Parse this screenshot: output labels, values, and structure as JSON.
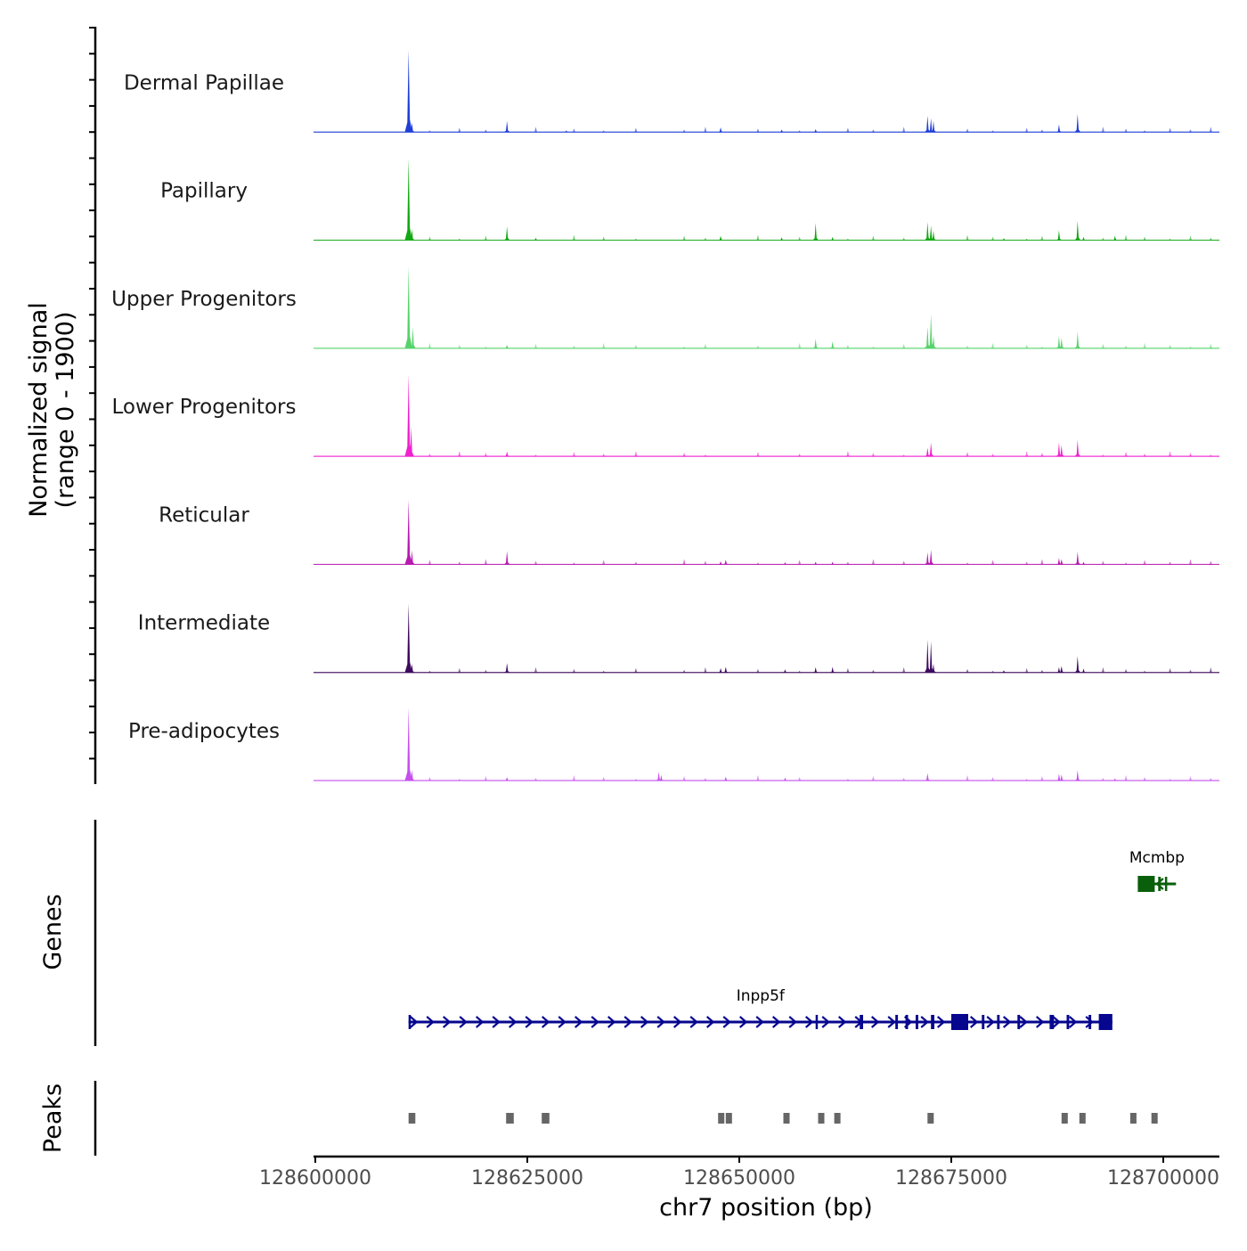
{
  "chart_data": {
    "type": "area",
    "genome_region": "chr7",
    "xlabel": "chr7 position (bp)",
    "xlim": [
      128600000,
      128707000
    ],
    "x_ticks": [
      {
        "value": 128600000,
        "label": "128600000"
      },
      {
        "value": 128625000,
        "label": "128625000"
      },
      {
        "value": 128650000,
        "label": "128650000"
      },
      {
        "value": 128675000,
        "label": "128675000"
      },
      {
        "value": 128700000,
        "label": "128700000"
      }
    ],
    "coverage_ylabel_line1": "Normalized signal",
    "coverage_ylabel_line2": "(range 0 - 1900)",
    "ylim": [
      0,
      1900
    ],
    "tracks": [
      {
        "name": "Dermal Papillae",
        "color": "#1f3ed8",
        "peaks": [
          [
            128611000,
            1900
          ],
          [
            128611400,
            220
          ],
          [
            128622600,
            260
          ],
          [
            128629600,
            40
          ],
          [
            128647800,
            110
          ],
          [
            128655000,
            60
          ],
          [
            128659000,
            70
          ],
          [
            128672200,
            380
          ],
          [
            128672600,
            320
          ],
          [
            128672900,
            260
          ],
          [
            128687700,
            180
          ],
          [
            128689900,
            420
          ]
        ]
      },
      {
        "name": "Papillary",
        "color": "#12a812",
        "peaks": [
          [
            128611000,
            1900
          ],
          [
            128611400,
            260
          ],
          [
            128622600,
            320
          ],
          [
            128626000,
            40
          ],
          [
            128647800,
            100
          ],
          [
            128655000,
            70
          ],
          [
            128659000,
            400
          ],
          [
            128661000,
            80
          ],
          [
            128672200,
            420
          ],
          [
            128672600,
            340
          ],
          [
            128672900,
            220
          ],
          [
            128681200,
            50
          ],
          [
            128687700,
            230
          ],
          [
            128689900,
            450
          ],
          [
            128690600,
            80
          ],
          [
            128694300,
            100
          ]
        ]
      },
      {
        "name": "Upper Progenitors",
        "color": "#56d36b",
        "peaks": [
          [
            128611000,
            1900
          ],
          [
            128611500,
            500
          ],
          [
            128622600,
            80
          ],
          [
            128659000,
            220
          ],
          [
            128661000,
            160
          ],
          [
            128672200,
            500
          ],
          [
            128672600,
            800
          ],
          [
            128672900,
            300
          ],
          [
            128687700,
            280
          ],
          [
            128688000,
            240
          ],
          [
            128689900,
            380
          ]
        ]
      },
      {
        "name": "Lower Progenitors",
        "color": "#f020d0",
        "peaks": [
          [
            128611000,
            1900
          ],
          [
            128611300,
            700
          ],
          [
            128622600,
            110
          ],
          [
            128672200,
            200
          ],
          [
            128672600,
            320
          ],
          [
            128687700,
            320
          ],
          [
            128688000,
            260
          ],
          [
            128689900,
            380
          ]
        ]
      },
      {
        "name": "Reticular",
        "color": "#b81ab0",
        "peaks": [
          [
            128611000,
            1500
          ],
          [
            128611400,
            330
          ],
          [
            128622600,
            310
          ],
          [
            128647800,
            70
          ],
          [
            128648400,
            110
          ],
          [
            128655400,
            50
          ],
          [
            128659000,
            60
          ],
          [
            128661000,
            60
          ],
          [
            128672200,
            280
          ],
          [
            128672600,
            340
          ],
          [
            128687700,
            150
          ],
          [
            128688000,
            120
          ],
          [
            128689900,
            290
          ],
          [
            128690600,
            60
          ]
        ]
      },
      {
        "name": "Intermediate",
        "color": "#3d0a5e",
        "peaks": [
          [
            128611000,
            1600
          ],
          [
            128611400,
            200
          ],
          [
            128622600,
            220
          ],
          [
            128647800,
            100
          ],
          [
            128648400,
            130
          ],
          [
            128655400,
            70
          ],
          [
            128659000,
            120
          ],
          [
            128661000,
            130
          ],
          [
            128672200,
            760
          ],
          [
            128672600,
            720
          ],
          [
            128672900,
            200
          ],
          [
            128681200,
            50
          ],
          [
            128687700,
            120
          ],
          [
            128688000,
            150
          ],
          [
            128689900,
            380
          ],
          [
            128690600,
            90
          ]
        ]
      },
      {
        "name": "Pre-adipocytes",
        "color": "#c550ee",
        "peaks": [
          [
            128611000,
            1700
          ],
          [
            128611400,
            250
          ],
          [
            128622600,
            80
          ],
          [
            128640500,
            200
          ],
          [
            128640800,
            130
          ],
          [
            128648400,
            90
          ],
          [
            128655400,
            70
          ],
          [
            128672200,
            170
          ],
          [
            128687700,
            160
          ],
          [
            128688000,
            140
          ],
          [
            128689900,
            240
          ],
          [
            128694300,
            50
          ]
        ]
      }
    ],
    "genes_ylabel": "Genes",
    "genes": [
      {
        "name": "Inpp5f",
        "strand": "+",
        "start": 128611000,
        "end": 128694000,
        "color": "#06068f",
        "exons": [
          [
            128611000,
            128611200
          ],
          [
            128659000,
            128659200
          ],
          [
            128664200,
            128664600
          ],
          [
            128668400,
            128668700
          ],
          [
            128669600,
            128669900
          ],
          [
            128670800,
            128671100
          ],
          [
            128672600,
            128673000
          ],
          [
            128675000,
            128677000
          ],
          [
            128678600,
            128678900
          ],
          [
            128680400,
            128680700
          ],
          [
            128682800,
            128683100
          ],
          [
            128686600,
            128687100
          ],
          [
            128688600,
            128688900
          ],
          [
            128691200,
            128691500
          ],
          [
            128692400,
            128694000
          ]
        ]
      },
      {
        "name": "Mcmbp",
        "strand": "-",
        "start": 128697000,
        "end": 128701500,
        "color": "#0a5f0a",
        "exons": [
          [
            128697000,
            128699000
          ],
          [
            128699400,
            128699700
          ],
          [
            128700200,
            128700400
          ]
        ]
      }
    ],
    "peaks_ylabel": "Peaks",
    "peak_regions": [
      [
        128611000,
        128611800
      ],
      [
        128622500,
        128623400
      ],
      [
        128626700,
        128627600
      ],
      [
        128647500,
        128648200
      ],
      [
        128648400,
        128649100
      ],
      [
        128655200,
        128655900
      ],
      [
        128659300,
        128660000
      ],
      [
        128661200,
        128661900
      ],
      [
        128672200,
        128672900
      ],
      [
        128688000,
        128688700
      ],
      [
        128690100,
        128690800
      ],
      [
        128696100,
        128696800
      ],
      [
        128698600,
        128699300
      ]
    ],
    "peak_color": "#666666"
  }
}
